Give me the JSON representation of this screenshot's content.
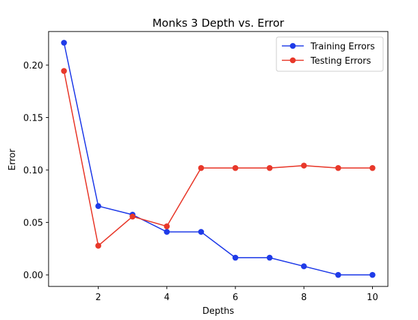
{
  "chart_data": {
    "type": "line",
    "title": "Monks 3 Depth vs. Error",
    "xlabel": "Depths",
    "ylabel": "Error",
    "xlim": [
      0.55,
      10.45
    ],
    "ylim": [
      -0.011,
      0.232
    ],
    "xticks": [
      2,
      4,
      6,
      8,
      10
    ],
    "xtick_labels": [
      "2",
      "4",
      "6",
      "8",
      "10"
    ],
    "yticks": [
      0.0,
      0.05,
      0.1,
      0.15,
      0.2
    ],
    "ytick_labels": [
      "0.00",
      "0.05",
      "0.10",
      "0.15",
      "0.20"
    ],
    "grid": false,
    "legend_position": "top-right",
    "x": [
      1,
      2,
      3,
      4,
      5,
      6,
      7,
      8,
      9,
      10
    ],
    "series": [
      {
        "name": "Training Errors",
        "color": "#1f3be8",
        "values": [
          0.2213,
          0.0656,
          0.0574,
          0.041,
          0.041,
          0.0164,
          0.0164,
          0.0082,
          0.0,
          0.0
        ]
      },
      {
        "name": "Testing Errors",
        "color": "#e8382a",
        "values": [
          0.1944,
          0.0278,
          0.0556,
          0.0463,
          0.1019,
          0.1019,
          0.1019,
          0.1042,
          0.1019,
          0.1019
        ]
      }
    ]
  }
}
